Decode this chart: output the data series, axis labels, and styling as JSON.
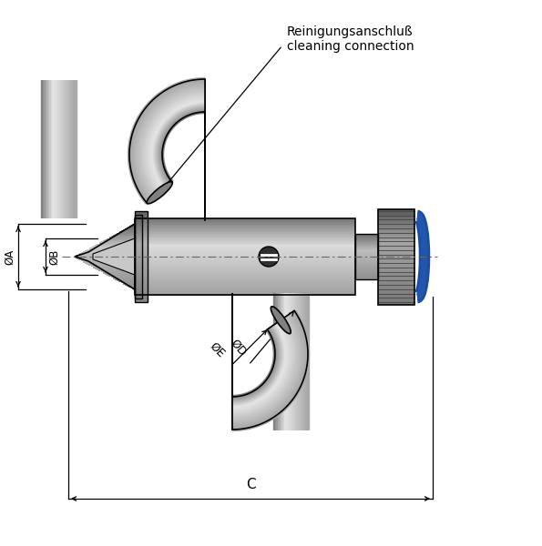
{
  "bg_color": "#ffffff",
  "line_color": "#000000",
  "label_reinigung_line1": "Reinigungsanschluß",
  "label_reinigung_line2": "cleaning connection",
  "label_A": "ØA",
  "label_B": "ØB",
  "label_C": "C",
  "label_D": "ØD",
  "label_E": "ØE",
  "figsize": [
    5.95,
    6.0
  ],
  "dpi": 100
}
